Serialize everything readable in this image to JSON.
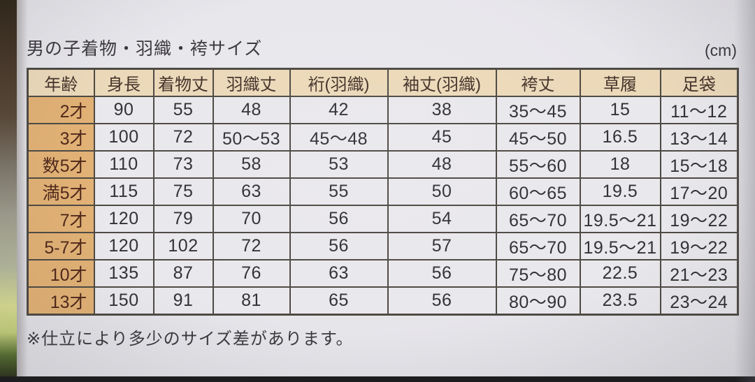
{
  "photo": {
    "title": "男の子着物・羽織・袴サイズ",
    "unit_label": "(cm)",
    "footnote": "※仕立により多少のサイズ差があります。"
  },
  "size_table": {
    "columns": [
      "年齢",
      "身長",
      "着物丈",
      "羽織丈",
      "裄(羽織)",
      "袖丈(羽織)",
      "袴丈",
      "草履",
      "足袋"
    ],
    "rows": [
      {
        "age": "2才",
        "values": [
          "90",
          "55",
          "48",
          "42",
          "38",
          "35〜45",
          "15",
          "11〜12"
        ]
      },
      {
        "age": "3才",
        "values": [
          "100",
          "72",
          "50〜53",
          "45〜48",
          "45",
          "45〜50",
          "16.5",
          "13〜14"
        ]
      },
      {
        "age": "数5才",
        "values": [
          "110",
          "73",
          "58",
          "53",
          "48",
          "55〜60",
          "18",
          "15〜18"
        ]
      },
      {
        "age": "満5才",
        "values": [
          "115",
          "75",
          "63",
          "55",
          "50",
          "60〜65",
          "19.5",
          "17〜20"
        ]
      },
      {
        "age": "7才",
        "values": [
          "120",
          "79",
          "70",
          "56",
          "54",
          "65〜70",
          "19.5〜21",
          "19〜22"
        ]
      },
      {
        "age": "5-7才",
        "values": [
          "120",
          "102",
          "72",
          "56",
          "57",
          "65〜70",
          "19.5〜21",
          "19〜22"
        ]
      },
      {
        "age": "10才",
        "values": [
          "135",
          "87",
          "76",
          "63",
          "56",
          "75〜80",
          "22.5",
          "21〜23"
        ]
      },
      {
        "age": "13才",
        "values": [
          "150",
          "91",
          "81",
          "65",
          "56",
          "80〜90",
          "23.5",
          "23〜24"
        ]
      }
    ]
  },
  "colors": {
    "header_bg": "#ecd9ba",
    "age_col_bg": "#e1b175",
    "cell_bg": "#e9e8ec",
    "grid_border": "#4e4a44",
    "paper_bg": "#e7e6eb",
    "header_text": "#45332a",
    "age_text": "#50291c",
    "value_text": "#323136"
  }
}
